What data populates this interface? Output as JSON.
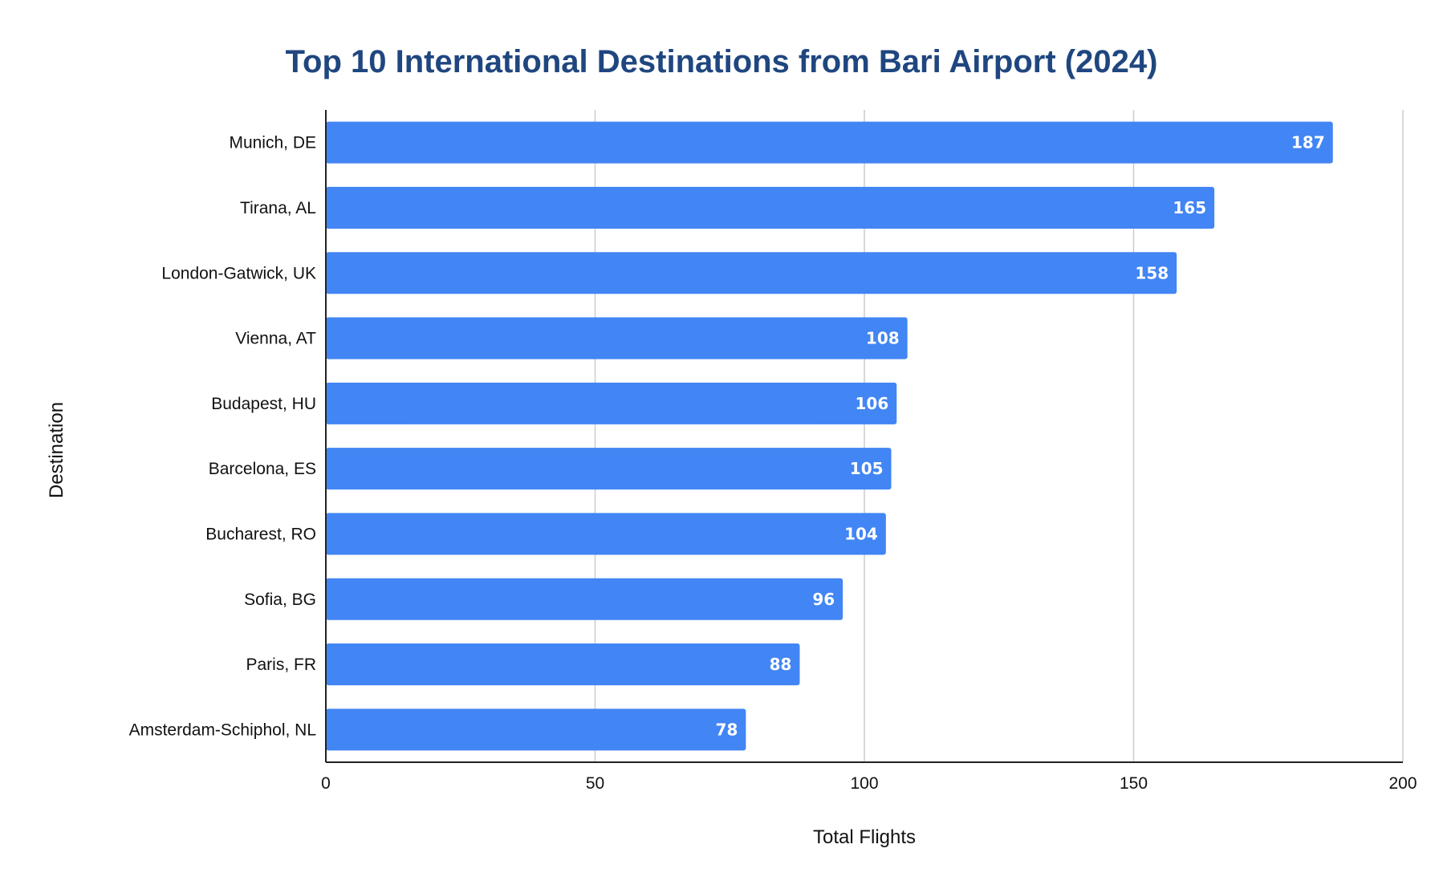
{
  "chart_data": {
    "type": "bar",
    "orientation": "horizontal",
    "title": "Top 10 International Destinations from Bari Airport (2024)",
    "xlabel": "Total Flights",
    "ylabel": "Destination",
    "xlim": [
      0,
      200
    ],
    "xticks": [
      0,
      50,
      100,
      150,
      200
    ],
    "categories": [
      "Munich, DE",
      "Tirana, AL",
      "London-Gatwick, UK",
      "Vienna, AT",
      "Budapest, HU",
      "Barcelona, ES",
      "Bucharest, RO",
      "Sofia, BG",
      "Paris, FR",
      "Amsterdam-Schiphol, NL"
    ],
    "values": [
      187,
      165,
      158,
      108,
      106,
      105,
      104,
      96,
      88,
      78
    ],
    "bar_color": "#4285f4",
    "title_color": "#1f467f",
    "grid": true,
    "legend": "none",
    "data_labels": true
  }
}
